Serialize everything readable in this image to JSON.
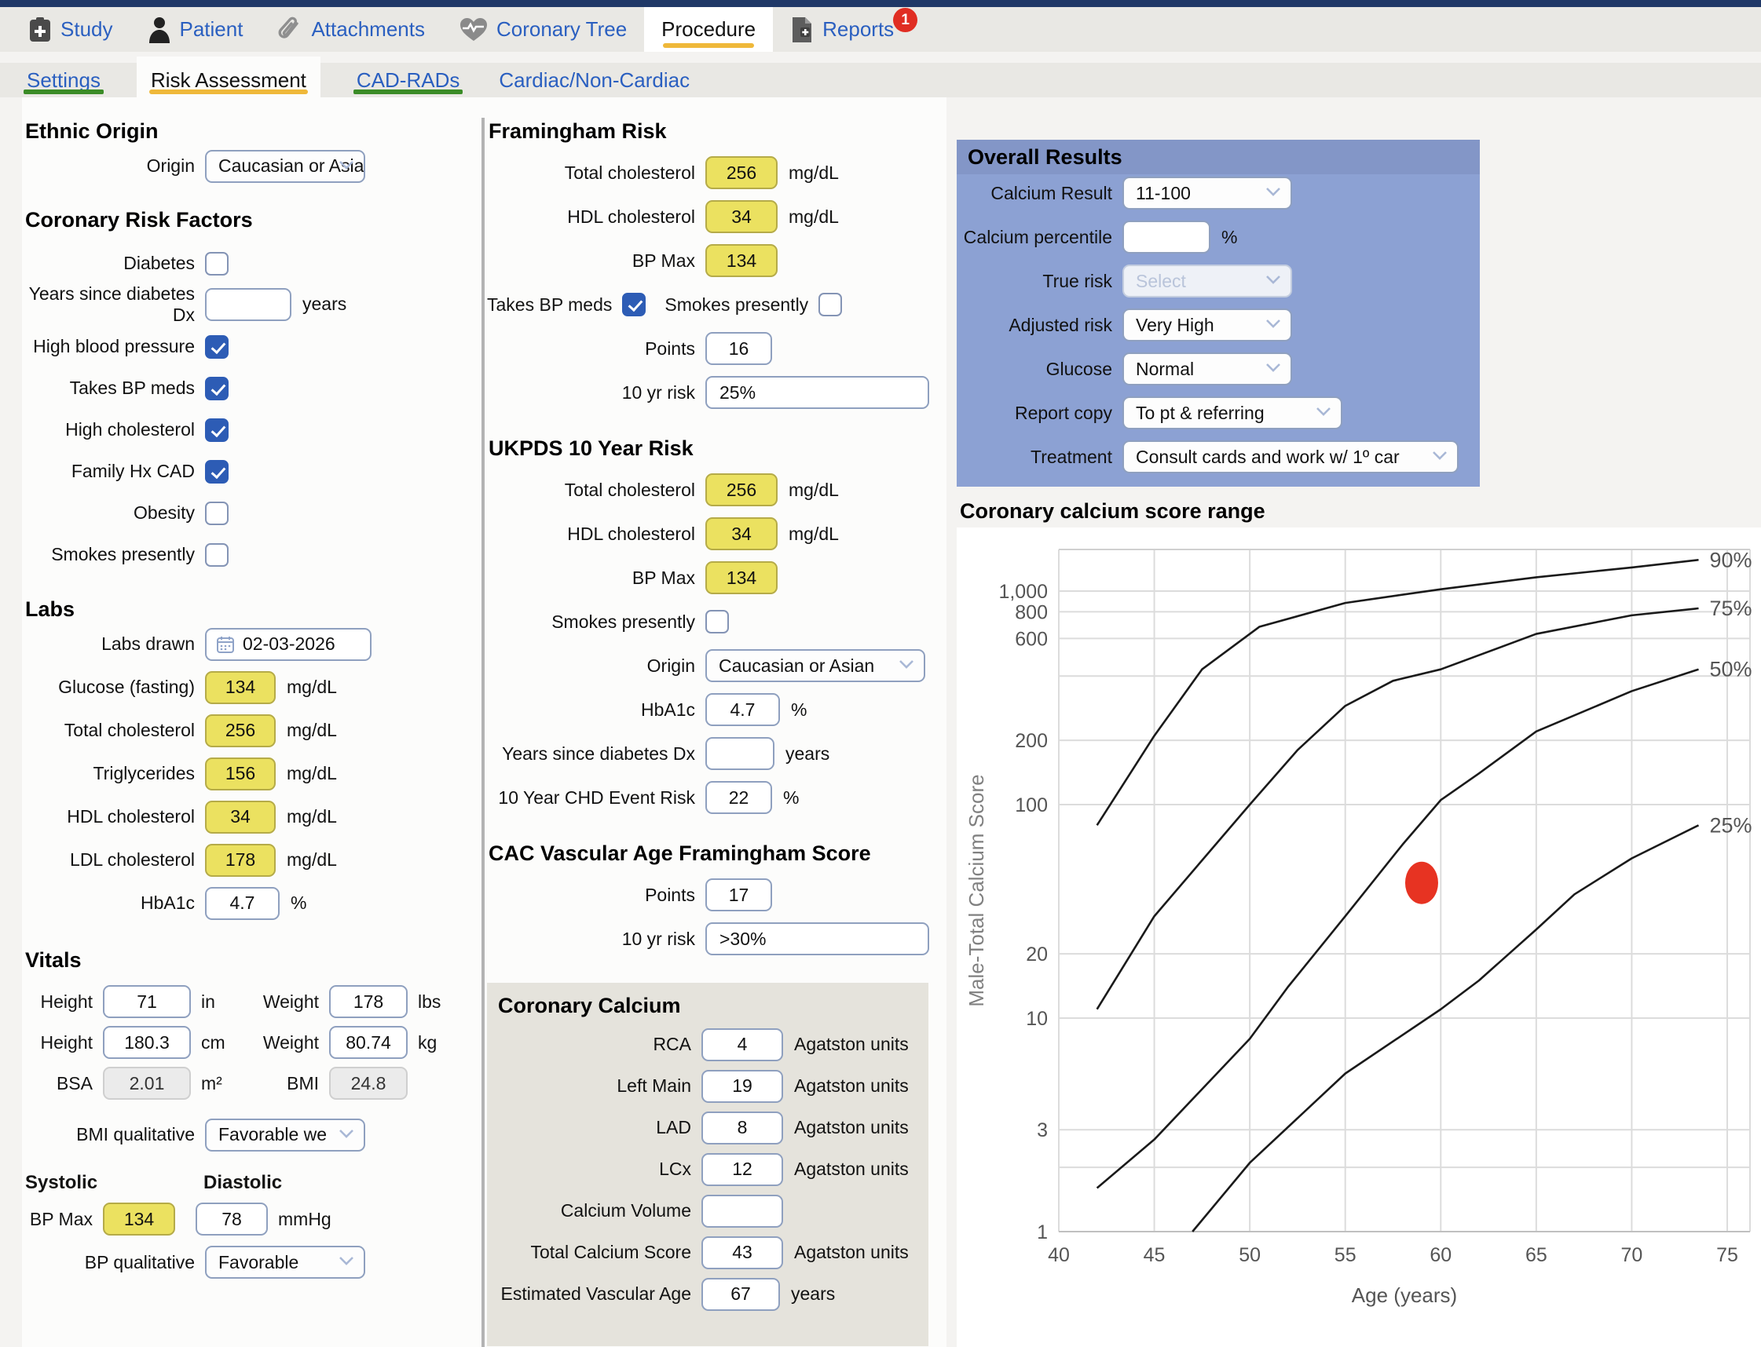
{
  "topnav": {
    "items": [
      {
        "label": "Study"
      },
      {
        "label": "Patient"
      },
      {
        "label": "Attachments"
      },
      {
        "label": "Coronary Tree"
      },
      {
        "label": "Procedure"
      },
      {
        "label": "Reports",
        "badge": "1"
      }
    ]
  },
  "tabs": {
    "items": [
      {
        "label": "Settings"
      },
      {
        "label": "Risk Assessment"
      },
      {
        "label": "CAD-RADs"
      },
      {
        "label": "Cardiac/Non-Cardiac"
      }
    ]
  },
  "ethnic_origin": {
    "heading": "Ethnic Origin",
    "origin": {
      "label": "Origin",
      "value": "Caucasian or Asian"
    }
  },
  "risk_factors": {
    "heading": "Coronary Risk Factors",
    "diabetes": {
      "label": "Diabetes",
      "checked": false
    },
    "years_dx": {
      "label": "Years since diabetes Dx",
      "value": "",
      "unit": "years"
    },
    "high_bp": {
      "label": "High blood pressure",
      "checked": true
    },
    "takes_bp_meds": {
      "label": "Takes BP meds",
      "checked": true
    },
    "high_cholesterol": {
      "label": "High cholesterol",
      "checked": true
    },
    "family_hx_cad": {
      "label": "Family Hx CAD",
      "checked": true
    },
    "obesity": {
      "label": "Obesity",
      "checked": false
    },
    "smokes": {
      "label": "Smokes presently",
      "checked": false
    }
  },
  "labs": {
    "heading": "Labs",
    "labs_drawn": {
      "label": "Labs drawn",
      "value": "02-03-2026"
    },
    "glucose": {
      "label": "Glucose (fasting)",
      "value": "134",
      "unit": "mg/dL"
    },
    "total_cholesterol": {
      "label": "Total cholesterol",
      "value": "256",
      "unit": "mg/dL"
    },
    "triglycerides": {
      "label": "Triglycerides",
      "value": "156",
      "unit": "mg/dL"
    },
    "hdl": {
      "label": "HDL cholesterol",
      "value": "34",
      "unit": "mg/dL"
    },
    "ldl": {
      "label": "LDL cholesterol",
      "value": "178",
      "unit": "mg/dL"
    },
    "hba1c": {
      "label": "HbA1c",
      "value": "4.7",
      "unit": "%"
    }
  },
  "vitals": {
    "heading": "Vitals",
    "height_in": {
      "label": "Height",
      "value": "71",
      "unit": "in"
    },
    "weight_lbs": {
      "label": "Weight",
      "value": "178",
      "unit": "lbs"
    },
    "height_cm": {
      "label": "Height",
      "value": "180.3",
      "unit": "cm"
    },
    "weight_kg": {
      "label": "Weight",
      "value": "80.74",
      "unit": "kg"
    },
    "bsa": {
      "label": "BSA",
      "value": "2.01",
      "unit": "m²"
    },
    "bmi": {
      "label": "BMI",
      "value": "24.8"
    },
    "bmi_qualitative": {
      "label": "BMI qualitative",
      "value": "Favorable we"
    },
    "systolic_heading": "Systolic",
    "diastolic_heading": "Diastolic",
    "bp_max": {
      "label": "BP Max",
      "systolic": "134",
      "diastolic": "78",
      "unit": "mmHg"
    },
    "bp_qualitative": {
      "label": "BP qualitative",
      "value": "Favorable"
    }
  },
  "framingham": {
    "heading": "Framingham Risk",
    "total_cholesterol": {
      "label": "Total cholesterol",
      "value": "256",
      "unit": "mg/dL"
    },
    "hdl": {
      "label": "HDL cholesterol",
      "value": "34",
      "unit": "mg/dL"
    },
    "bp_max": {
      "label": "BP Max",
      "value": "134"
    },
    "takes_bp_meds": {
      "label": "Takes BP meds",
      "checked": true
    },
    "smokes": {
      "label": "Smokes presently",
      "checked": false
    },
    "points": {
      "label": "Points",
      "value": "16"
    },
    "ten_yr_risk": {
      "label": "10 yr risk",
      "value": "25%"
    }
  },
  "ukpds": {
    "heading": "UKPDS 10 Year Risk",
    "total_cholesterol": {
      "label": "Total cholesterol",
      "value": "256",
      "unit": "mg/dL"
    },
    "hdl": {
      "label": "HDL cholesterol",
      "value": "34",
      "unit": "mg/dL"
    },
    "bp_max": {
      "label": "BP Max",
      "value": "134"
    },
    "smokes": {
      "label": "Smokes presently",
      "checked": false
    },
    "origin": {
      "label": "Origin",
      "value": "Caucasian or Asian"
    },
    "hba1c": {
      "label": "HbA1c",
      "value": "4.7",
      "unit": "%"
    },
    "years_dx": {
      "label": "Years since diabetes Dx",
      "value": "",
      "unit": "years"
    },
    "chd_risk": {
      "label": "10 Year CHD Event Risk",
      "value": "22",
      "unit": "%"
    }
  },
  "cac_vascular": {
    "heading": "CAC Vascular Age Framingham Score",
    "points": {
      "label": "Points",
      "value": "17"
    },
    "ten_yr_risk": {
      "label": "10 yr risk",
      "value": ">30%"
    }
  },
  "coronary_calcium": {
    "heading": "Coronary Calcium",
    "rca": {
      "label": "RCA",
      "value": "4",
      "unit": "Agatston units"
    },
    "left_main": {
      "label": "Left Main",
      "value": "19",
      "unit": "Agatston units"
    },
    "lad": {
      "label": "LAD",
      "value": "8",
      "unit": "Agatston units"
    },
    "lcx": {
      "label": "LCx",
      "value": "12",
      "unit": "Agatston units"
    },
    "calcium_volume": {
      "label": "Calcium Volume",
      "value": ""
    },
    "total_score": {
      "label": "Total Calcium Score",
      "value": "43",
      "unit": "Agatston units"
    },
    "vascular_age": {
      "label": "Estimated Vascular Age",
      "value": "67",
      "unit": "years"
    }
  },
  "overall_results": {
    "heading": "Overall Results",
    "calcium_result": {
      "label": "Calcium Result",
      "value": "11-100"
    },
    "calcium_percentile": {
      "label": "Calcium percentile",
      "value": "",
      "unit": "%"
    },
    "true_risk": {
      "label": "True risk",
      "value": "Select"
    },
    "adjusted_risk": {
      "label": "Adjusted risk",
      "value": "Very High"
    },
    "glucose": {
      "label": "Glucose",
      "value": "Normal"
    },
    "report_copy": {
      "label": "Report copy",
      "value": "To pt & referring"
    },
    "treatment": {
      "label": "Treatment",
      "value": "Consult cards and work w/ 1º car"
    }
  },
  "colors": {
    "accent_orange": "#efb83a",
    "accent_green": "#3b8c27",
    "link_blue": "#2a5fc0",
    "checkbox_blue": "#2d5cb5",
    "input_yellow": "#ebe160",
    "panel_blue": "#8ca1d3",
    "badge_red": "#e02d22",
    "marker_red": "#e73322"
  },
  "chart_data": {
    "type": "line",
    "title": "Coronary calcium score range",
    "xlabel": "Age (years)",
    "ylabel": "Male-Total Calcium Score",
    "y_scale": "log",
    "xlim": [
      40,
      75
    ],
    "ylim": [
      1,
      1600
    ],
    "x_ticks": [
      40,
      45,
      50,
      55,
      60,
      65,
      70,
      75
    ],
    "y_ticks": [
      1,
      3,
      10,
      20,
      100,
      200,
      600,
      800,
      1000
    ],
    "y_tick_labels": [
      "1",
      "3",
      "10",
      "20",
      "100",
      "200",
      "600",
      "800",
      "1,000"
    ],
    "y_gridlines": [
      1,
      2,
      3,
      10,
      20,
      100,
      200,
      400,
      600,
      800,
      1000
    ],
    "grid": true,
    "legend_position": "right-of-curves",
    "series": [
      {
        "name": "90%",
        "points": [
          [
            42,
            80
          ],
          [
            45,
            210
          ],
          [
            47.5,
            430
          ],
          [
            50.5,
            680
          ],
          [
            55,
            880
          ],
          [
            60,
            1020
          ],
          [
            65,
            1160
          ],
          [
            70,
            1290
          ],
          [
            73.5,
            1400
          ]
        ]
      },
      {
        "name": "75%",
        "points": [
          [
            42,
            11
          ],
          [
            45,
            30
          ],
          [
            50,
            100
          ],
          [
            52.5,
            180
          ],
          [
            55,
            290
          ],
          [
            57.5,
            380
          ],
          [
            60,
            430
          ],
          [
            65,
            630
          ],
          [
            70,
            770
          ],
          [
            73.5,
            830
          ]
        ]
      },
      {
        "name": "50%",
        "points": [
          [
            42,
            1.6
          ],
          [
            45,
            2.7
          ],
          [
            50,
            8
          ],
          [
            52,
            14
          ],
          [
            55,
            30
          ],
          [
            58,
            65
          ],
          [
            60,
            105
          ],
          [
            62,
            140
          ],
          [
            65,
            220
          ],
          [
            70,
            340
          ],
          [
            73.5,
            430
          ]
        ]
      },
      {
        "name": "25%",
        "points": [
          [
            47,
            1
          ],
          [
            50,
            2.1
          ],
          [
            55,
            5.5
          ],
          [
            60,
            11
          ],
          [
            62,
            15
          ],
          [
            65,
            26
          ],
          [
            67,
            38
          ],
          [
            70,
            56
          ],
          [
            73.5,
            80
          ]
        ]
      }
    ],
    "marker": {
      "x": 59,
      "y": 43,
      "color": "#e73322"
    },
    "line_color": "#1a1a1a"
  }
}
